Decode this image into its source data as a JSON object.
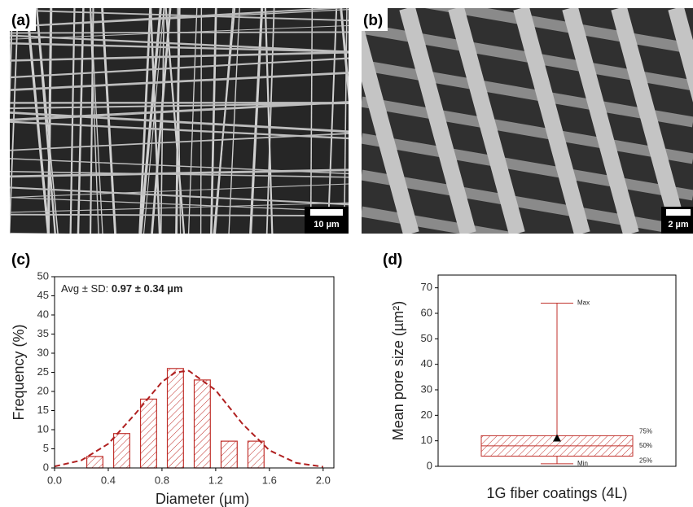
{
  "panels": [
    {
      "label": "(a)",
      "scale_bar": "10 µm"
    },
    {
      "label": "(b)",
      "scale_bar": "2 µm"
    },
    {
      "label": "(c)"
    },
    {
      "label": "(d)"
    }
  ],
  "chart_data": [
    {
      "type": "bar",
      "xlabel": "Diameter (µm)",
      "ylabel": "Frequency (%)",
      "annotation": {
        "label": "Avg ± SD:",
        "value": "0.97 ± 0.34 µm"
      },
      "x": [
        0.3,
        0.5,
        0.7,
        0.9,
        1.1,
        1.3,
        1.5
      ],
      "values": [
        3,
        9,
        18,
        26,
        23,
        7,
        7
      ],
      "color": "#c0302b",
      "fit": {
        "x": [
          0,
          0.2,
          0.4,
          0.6,
          0.8,
          0.9,
          1.0,
          1.2,
          1.4,
          1.6,
          1.8,
          2.0
        ],
        "values": [
          0.4,
          2.0,
          6.3,
          14.1,
          22.5,
          25.0,
          25.4,
          20.3,
          11.5,
          4.6,
          1.3,
          0.3
        ],
        "color": "#b02020"
      },
      "xlim": [
        0,
        2.08
      ],
      "ylim": [
        0,
        50
      ],
      "xticks": [
        {
          "value": 0,
          "label": "0.0"
        },
        0.4,
        0.8,
        1.2,
        1.6,
        {
          "value": 2,
          "label": "2.0"
        }
      ],
      "yticks": [
        0,
        5,
        10,
        15,
        20,
        25,
        30,
        35,
        40,
        45,
        50
      ]
    },
    {
      "type": "box",
      "ylabel": "Mean pore size (µm²)",
      "categories": [
        "1G fiber coatings (4L)"
      ],
      "min": [
        1
      ],
      "q1": [
        4
      ],
      "median": [
        8
      ],
      "q3": [
        12
      ],
      "max": [
        64
      ],
      "mean": [
        11
      ],
      "stat_labels": {
        "max": "Max",
        "q3": "75%",
        "median": "50%",
        "q1": "25%",
        "min": "Min"
      },
      "color": "#c0302b",
      "ylim": [
        0,
        75
      ],
      "yticks": [
        0,
        10,
        20,
        30,
        40,
        50,
        60,
        70
      ]
    }
  ]
}
